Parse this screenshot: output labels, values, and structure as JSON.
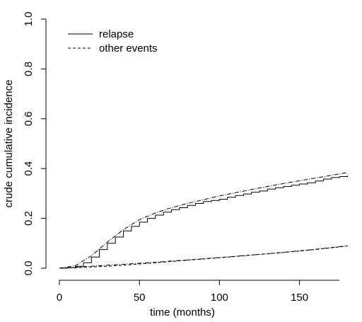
{
  "chart_data": {
    "type": "line",
    "xlabel": "time (months)",
    "ylabel": "crude cumulative incidence",
    "xlim": [
      0,
      180
    ],
    "ylim": [
      0,
      1
    ],
    "x_ticks": [
      "0",
      "50",
      "100",
      "150"
    ],
    "y_ticks": [
      "0.0",
      "0.2",
      "0.4",
      "0.6",
      "0.8",
      "1.0"
    ],
    "grid": false,
    "legend_position": "top-left",
    "legend": [
      {
        "label": "relapse",
        "style": "solid"
      },
      {
        "label": "other events",
        "style": "dashed"
      }
    ],
    "series": [
      {
        "name": "relapse",
        "style": "solid",
        "color": "#000000",
        "x": [
          0,
          5,
          10,
          15,
          20,
          25,
          30,
          35,
          40,
          45,
          50,
          55,
          60,
          65,
          70,
          75,
          80,
          85,
          90,
          95,
          100,
          105,
          110,
          115,
          120,
          125,
          130,
          135,
          140,
          145,
          150,
          155,
          160,
          165,
          170,
          175,
          180
        ],
        "y": [
          0,
          0.002,
          0.008,
          0.022,
          0.045,
          0.075,
          0.1,
          0.125,
          0.15,
          0.168,
          0.185,
          0.2,
          0.213,
          0.225,
          0.235,
          0.243,
          0.252,
          0.26,
          0.268,
          0.272,
          0.277,
          0.285,
          0.292,
          0.298,
          0.305,
          0.31,
          0.318,
          0.323,
          0.328,
          0.333,
          0.338,
          0.343,
          0.35,
          0.358,
          0.364,
          0.368,
          0.372
        ]
      },
      {
        "name": "relapse (fitted)",
        "style": "dashdot",
        "color": "#000000",
        "x": [
          0,
          10,
          20,
          30,
          40,
          50,
          60,
          70,
          80,
          90,
          100,
          110,
          120,
          130,
          140,
          150,
          160,
          170,
          180
        ],
        "y": [
          0,
          0.01,
          0.05,
          0.105,
          0.155,
          0.195,
          0.222,
          0.243,
          0.26,
          0.275,
          0.29,
          0.303,
          0.316,
          0.328,
          0.34,
          0.351,
          0.362,
          0.373,
          0.384
        ]
      },
      {
        "name": "other events",
        "style": "dashed",
        "color": "#000000",
        "x": [
          0,
          10,
          20,
          30,
          40,
          50,
          60,
          70,
          80,
          90,
          100,
          110,
          120,
          130,
          140,
          150,
          160,
          170,
          180
        ],
        "y": [
          0,
          0.002,
          0.005,
          0.008,
          0.012,
          0.017,
          0.022,
          0.027,
          0.032,
          0.037,
          0.042,
          0.047,
          0.053,
          0.058,
          0.063,
          0.069,
          0.075,
          0.082,
          0.089
        ]
      },
      {
        "name": "other events (fitted)",
        "style": "dashdot",
        "color": "#000000",
        "x": [
          0,
          10,
          20,
          30,
          40,
          50,
          60,
          70,
          80,
          90,
          100,
          110,
          120,
          130,
          140,
          150,
          160,
          170,
          180
        ],
        "y": [
          0,
          0.004,
          0.008,
          0.012,
          0.016,
          0.02,
          0.024,
          0.029,
          0.033,
          0.038,
          0.043,
          0.048,
          0.053,
          0.058,
          0.064,
          0.07,
          0.076,
          0.083,
          0.09
        ]
      }
    ]
  }
}
